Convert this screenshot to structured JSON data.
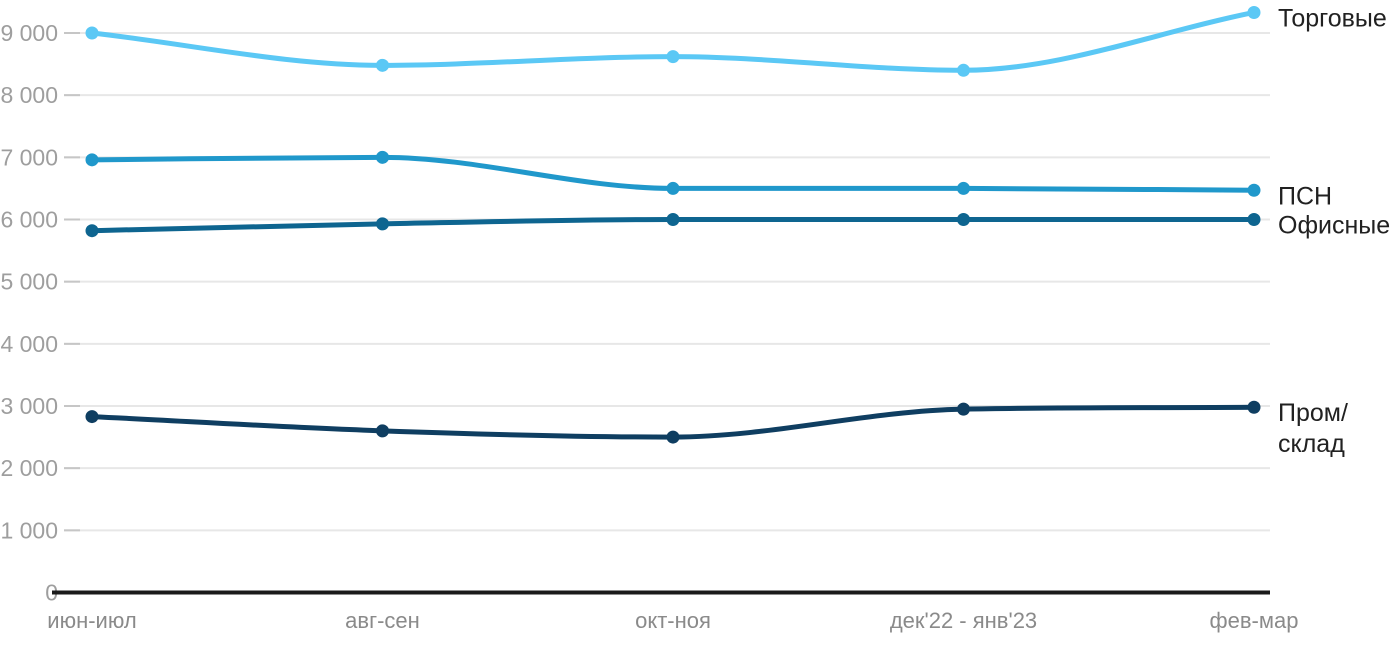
{
  "chart_data": {
    "type": "line",
    "title": "",
    "xlabel": "",
    "ylabel": "",
    "categories": [
      "июн-июл",
      "авг-сен",
      "окт-ноя",
      "дек'22 - янв'23",
      "фев-мар"
    ],
    "series": [
      {
        "name": "Торговые",
        "label_lines": [
          "Торговые"
        ],
        "color": "#5BC8F5",
        "values": [
          9000,
          8480,
          8620,
          8400,
          9330
        ]
      },
      {
        "name": "ПСН",
        "label_lines": [
          "ПСН"
        ],
        "color": "#2098CB",
        "values": [
          6960,
          7000,
          6500,
          6500,
          6470
        ]
      },
      {
        "name": "Офисные",
        "label_lines": [
          "Офисные"
        ],
        "color": "#0E6590",
        "values": [
          5820,
          5930,
          6000,
          6000,
          6000
        ]
      },
      {
        "name": "Пром/склад",
        "label_lines": [
          "Пром/",
          "склад"
        ],
        "color": "#0F3E61",
        "values": [
          2830,
          2600,
          2500,
          2950,
          2980
        ]
      }
    ],
    "ylim": [
      0,
      9500
    ],
    "y_ticks": [
      0,
      1000,
      2000,
      3000,
      4000,
      5000,
      6000,
      7000,
      8000,
      9000
    ],
    "y_tick_labels": [
      "0",
      "1 000",
      "2 000",
      "3 000",
      "4 000",
      "5 000",
      "6 000",
      "7 000",
      "8 000",
      "9 000"
    ],
    "grid": "horizontal",
    "legend_position": "right-of-line-end",
    "colors": {
      "axis_line": "#1a1a1a",
      "grid_line": "#e7e7e7",
      "tick_mark": "#c6c6c6",
      "y_tick_label": "#9e9e9e",
      "x_tick_label": "#8a8a8a",
      "legend_text": "#212121",
      "background": "#ffffff"
    }
  }
}
